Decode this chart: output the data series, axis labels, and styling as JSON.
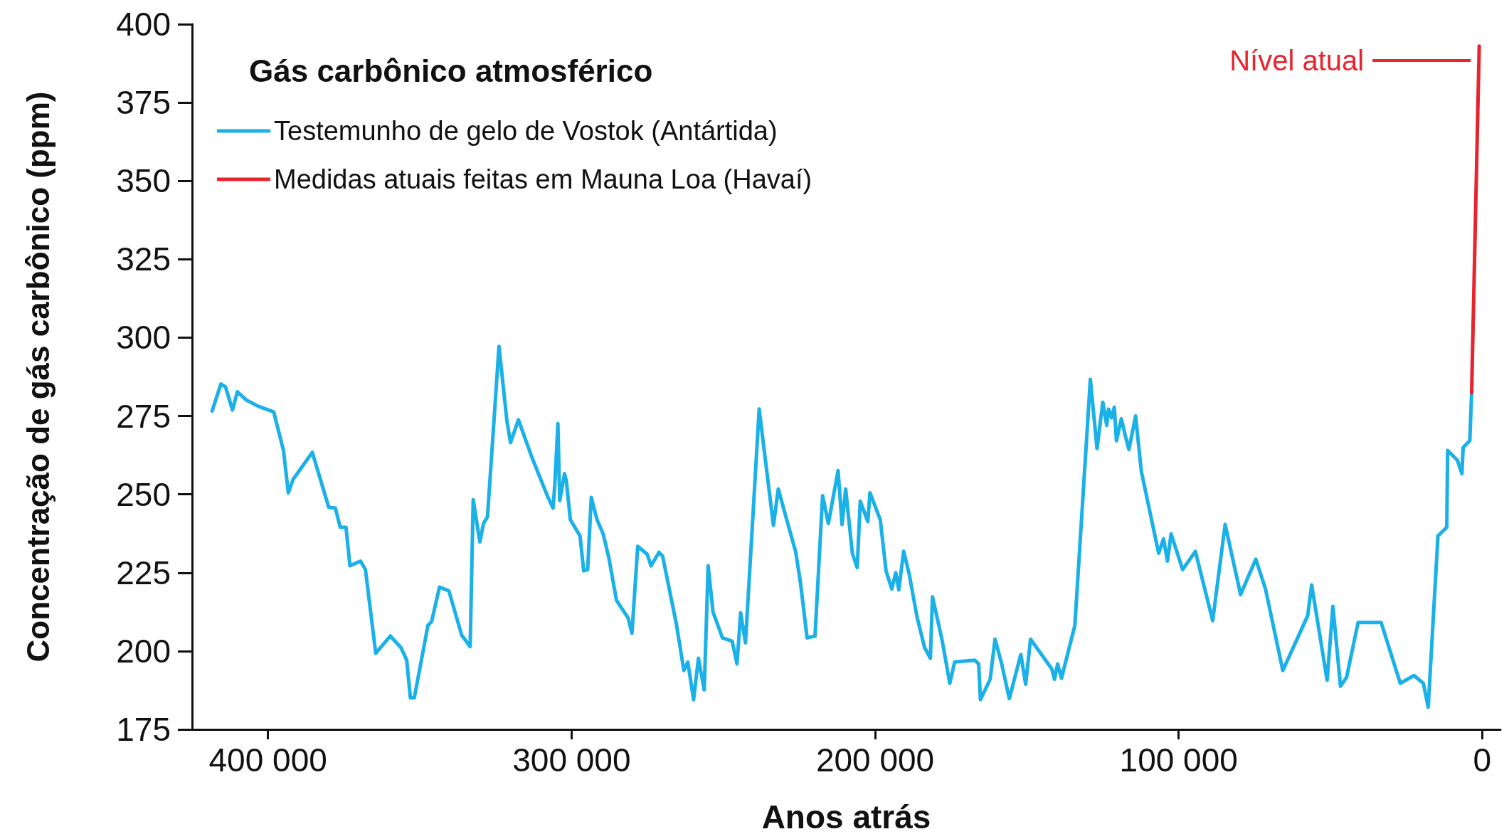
{
  "chart_data": {
    "type": "line",
    "legend_title": "Gás carbônico atmosférico",
    "xlabel": "Anos atrás",
    "ylabel": "Concentração de gás carbônico (ppm)",
    "xlim": [
      425000,
      -6000
    ],
    "xticks": [
      {
        "value": 400000,
        "label": "400 000"
      },
      {
        "value": 300000,
        "label": "300 000"
      },
      {
        "value": 200000,
        "label": "200 000"
      },
      {
        "value": 100000,
        "label": "100 000"
      },
      0
    ],
    "ylim": [
      175,
      400
    ],
    "yticks": [
      175,
      200,
      225,
      250,
      275,
      300,
      325,
      350,
      375,
      400
    ],
    "grid": false,
    "legend": "top left",
    "marker": "none",
    "line_style": "solid",
    "annotations": [
      "Nível atual"
    ],
    "series": [
      {
        "name": "Testemunho de gelo de Vostok (Antártida)",
        "color": "#1ab0e8",
        "x": [
          418400,
          415500,
          414000,
          411700,
          410100,
          407000,
          403200,
          398100,
          394900,
          393300,
          391700,
          385400,
          380000,
          377800,
          376200,
          374300,
          373000,
          369500,
          367900,
          364500,
          359700,
          356200,
          354300,
          353100,
          351800,
          347300,
          346100,
          343500,
          340400,
          336200,
          333400,
          332400,
          330200,
          329000,
          327700,
          323900,
          321300,
          320100,
          317500,
          313100,
          308000,
          306100,
          305500,
          304500,
          303900,
          302300,
          301700,
          300400,
          297200,
          296000,
          294700,
          293500,
          291600,
          289600,
          287700,
          285200,
          281400,
          280100,
          278200,
          275100,
          273800,
          271200,
          270000,
          265500,
          263000,
          261700,
          259800,
          258200,
          256300,
          255000,
          253400,
          250300,
          247100,
          245500,
          244300,
          242700,
          238200,
          233500,
          231900,
          229300,
          226200,
          224600,
          222400,
          219800,
          217300,
          215400,
          212200,
          210900,
          209700,
          207500,
          205900,
          204900,
          202400,
          201700,
          198300,
          196400,
          194500,
          193200,
          192200,
          190600,
          188800,
          186200,
          183700,
          181800,
          181100,
          178000,
          175400,
          173800,
          167200,
          165900,
          165300,
          162100,
          160500,
          158300,
          155800,
          152000,
          150400,
          148800,
          141800,
          140900,
          139900,
          138600,
          137400,
          134200,
          129100,
          126900,
          125000,
          123700,
          123100,
          122100,
          121200,
          120500,
          118900,
          117400,
          116400,
          114200,
          112300,
          106600,
          105000,
          103700,
          102500,
          98700,
          94500,
          88800,
          84700,
          79600,
          74600,
          71400,
          65700,
          57500,
          56200,
          51100,
          49200,
          46700,
          44700,
          40900,
          33300,
          27000,
          22500,
          19400,
          17800,
          14600,
          11700,
          11400,
          8200,
          6700,
          6300,
          4100,
          3500
        ],
        "values": [
          276.6,
          285.2,
          284.3,
          276.9,
          282.7,
          280,
          278.1,
          276.3,
          264,
          250.5,
          254.8,
          263.4,
          245.9,
          245.6,
          239.5,
          239.5,
          227.2,
          228.7,
          226,
          199.3,
          204.8,
          201.1,
          197.1,
          185.1,
          185.1,
          208.2,
          209.4,
          220.4,
          219.2,
          205.1,
          201.4,
          248.3,
          234.8,
          240.7,
          242.8,
          297.2,
          273.5,
          266.5,
          273.8,
          261.9,
          249.6,
          245.6,
          253.3,
          272.6,
          248,
          256.6,
          254.2,
          241.9,
          236.7,
          225.6,
          226,
          249,
          241.9,
          237.4,
          229.7,
          216.2,
          210.6,
          205.7,
          233.4,
          230.9,
          227.2,
          231.5,
          230.3,
          208.8,
          193.8,
          196.5,
          184.5,
          197.7,
          187.6,
          227.2,
          212.5,
          204.2,
          203.2,
          195.9,
          212.2,
          202.6,
          277.2,
          240.1,
          251.7,
          242.5,
          231.8,
          221.9,
          204.2,
          204.8,
          249.6,
          240.7,
          257.6,
          240.4,
          251.7,
          231.2,
          226.6,
          247.8,
          241.3,
          250.5,
          241.9,
          225.6,
          219.8,
          225,
          219.5,
          231.8,
          224.7,
          210.9,
          201.1,
          197.7,
          217.3,
          203.8,
          189.7,
          196.5,
          197.1,
          195.9,
          184.5,
          191,
          203.8,
          195.9,
          184.8,
          198.9,
          189.4,
          203.8,
          194.3,
          191,
          195.9,
          191.3,
          195.9,
          208.2,
          286.7,
          264.6,
          279.4,
          272,
          277.2,
          274.4,
          277.8,
          267.1,
          274.1,
          268,
          264.3,
          275,
          257.3,
          231.2,
          235.8,
          228.7,
          237.4,
          226,
          231.8,
          209.7,
          240.4,
          218,
          229.3,
          219.8,
          193.8,
          211.3,
          221.1,
          190.7,
          214.3,
          188.8,
          191.6,
          209.1,
          209.1,
          189.7,
          192.2,
          189.7,
          182.1,
          236.7,
          239.5,
          264,
          260.9,
          256.6,
          264.9,
          267.1,
          282.4
        ]
      },
      {
        "name": "Medidas atuais feitas em Mauna Loa (Havaí)",
        "color": "#e8232e",
        "x": [
          3500,
          1000
        ],
        "values": [
          282.4,
          393
        ]
      }
    ]
  }
}
